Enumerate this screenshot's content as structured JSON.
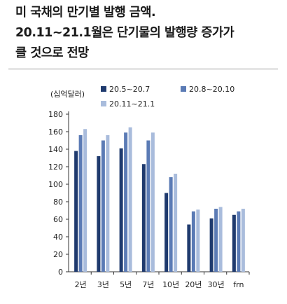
{
  "title_lines": [
    "미 국채의 만기별 발행 금액.",
    "20.11~21.1월은 단기물의 발행량 증가가",
    "클 것으로 전망"
  ],
  "chart_data": {
    "type": "bar",
    "ylabel": "(십억달러)",
    "ylim": [
      0,
      180
    ],
    "yticks": [
      0,
      20,
      40,
      60,
      80,
      100,
      120,
      140,
      160,
      180
    ],
    "categories": [
      "2년",
      "3년",
      "5년",
      "7년",
      "10년",
      "20년",
      "30년",
      "frn"
    ],
    "legend_position": "top",
    "grid": false,
    "series": [
      {
        "name": "20.5~20.7",
        "color": "#1f3a6e",
        "values": [
          138,
          132,
          141,
          123,
          90,
          54,
          61,
          65
        ]
      },
      {
        "name": "20.8~20.10",
        "color": "#5b7bb5",
        "values": [
          156,
          150,
          159,
          150,
          108,
          69,
          72,
          69
        ]
      },
      {
        "name": "20.11~21.1",
        "color": "#a9bcdc",
        "values": [
          163,
          156,
          165,
          159,
          112,
          71,
          74,
          72
        ]
      }
    ]
  }
}
